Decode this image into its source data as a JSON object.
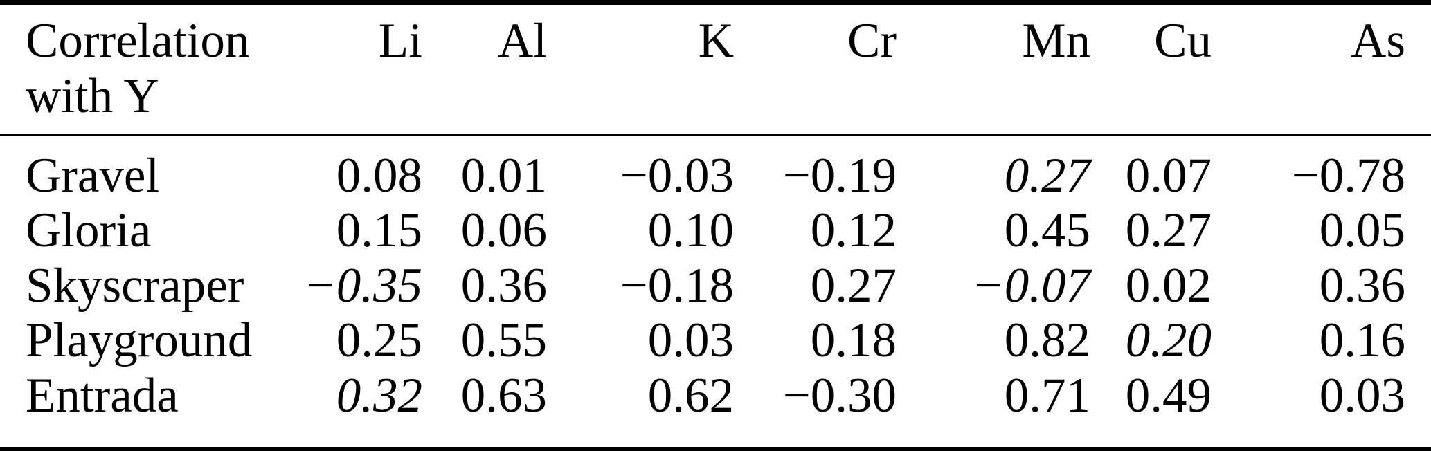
{
  "table": {
    "corner_header": "Correlation with Y",
    "element_columns": [
      "Li",
      "Al",
      "K",
      "Cr",
      "Mn",
      "Cu",
      "As"
    ],
    "rows": [
      {
        "label": "Gravel",
        "values": [
          "0.08",
          "0.01",
          "−0.03",
          "−0.19",
          "0.27",
          "0.07",
          "−0.78"
        ],
        "italic": [
          false,
          false,
          false,
          false,
          true,
          false,
          false
        ]
      },
      {
        "label": "Gloria",
        "values": [
          "0.15",
          "0.06",
          "0.10",
          "0.12",
          "0.45",
          "0.27",
          "0.05"
        ],
        "italic": [
          false,
          false,
          false,
          false,
          false,
          false,
          false
        ]
      },
      {
        "label": "Skyscraper",
        "values": [
          "−0.35",
          "0.36",
          "−0.18",
          "0.27",
          "−0.07",
          "0.02",
          "0.36"
        ],
        "italic": [
          true,
          false,
          false,
          false,
          true,
          false,
          false
        ]
      },
      {
        "label": "Playground",
        "values": [
          "0.25",
          "0.55",
          "0.03",
          "0.18",
          "0.82",
          "0.20",
          "0.16"
        ],
        "italic": [
          false,
          false,
          false,
          false,
          false,
          true,
          false
        ]
      },
      {
        "label": "Entrada",
        "values": [
          "0.32",
          "0.63",
          "0.62",
          "−0.30",
          "0.71",
          "0.49",
          "0.03"
        ],
        "italic": [
          true,
          false,
          false,
          false,
          false,
          false,
          false
        ]
      }
    ],
    "colors": {
      "text": "#000000",
      "background": "#ffffff",
      "rule": "#000000"
    }
  }
}
